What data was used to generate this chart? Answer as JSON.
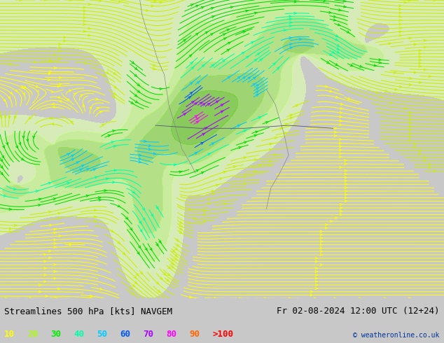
{
  "title_left": "Streamlines 500 hPa [kts] NAVGEM",
  "title_right": "Fr 02-08-2024 12:00 UTC (12+24)",
  "copyright": "© weatheronline.co.uk",
  "legend_values": [
    "10",
    "20",
    "30",
    "40",
    "50",
    "60",
    "70",
    "80",
    "90",
    ">100"
  ],
  "legend_colors": [
    "#ffff00",
    "#aaff00",
    "#00ee00",
    "#00ffaa",
    "#00ccff",
    "#0055ff",
    "#aa00ff",
    "#ff00ff",
    "#ff6600",
    "#ff0000"
  ],
  "background_color": "#c8c8c8",
  "map_bg_color": "#f0f0f0",
  "fig_width": 6.34,
  "fig_height": 4.9,
  "dpi": 100,
  "bottom_bar_color": "#d8d8d8",
  "title_fontsize": 9,
  "legend_fontsize": 9,
  "speed_bands": [
    [
      0,
      12,
      "#ffff00"
    ],
    [
      12,
      22,
      "#ccee00"
    ],
    [
      22,
      32,
      "#00dd00"
    ],
    [
      32,
      42,
      "#00ffaa"
    ],
    [
      42,
      52,
      "#00ccff"
    ],
    [
      52,
      62,
      "#0055ff"
    ],
    [
      62,
      75,
      "#aa00ff"
    ],
    [
      75,
      90,
      "#ff00ff"
    ],
    [
      90,
      110,
      "#ff6600"
    ],
    [
      110,
      9999,
      "#ff0000"
    ]
  ],
  "green_shade_levels": [
    10,
    20,
    30,
    40,
    50
  ],
  "green_shade_colors": [
    "#e8ffcc",
    "#ccff88",
    "#aaee55",
    "#88dd33",
    "#66cc11"
  ]
}
